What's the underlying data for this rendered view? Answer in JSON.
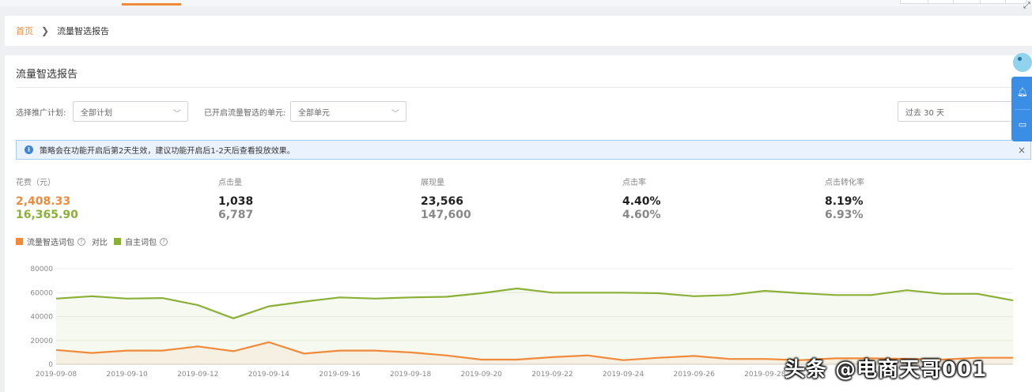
{
  "breadcrumb": {
    "home": "首页",
    "separator": "❯",
    "current": "流量智选报告"
  },
  "panel": {
    "title": "流量智选报告"
  },
  "filters": {
    "plan_label": "选择推广计划:",
    "plan_value": "全部计划",
    "unit_label": "已开启流量智选的单元:",
    "unit_value": "全部单元",
    "date_value": "过去 30 天"
  },
  "notice": {
    "text": "策略会在功能开启后第2天生效，建议功能开启后1-2天后查看投放效果。",
    "close": "×",
    "info": "i"
  },
  "metrics": [
    {
      "label": "花费（元）",
      "value1": "2,408.33",
      "value2": "16,365.90"
    },
    {
      "label": "点击量",
      "value1": "1,038",
      "value2": "6,787"
    },
    {
      "label": "展现量",
      "value1": "23,566",
      "value2": "147,600"
    },
    {
      "label": "点击率",
      "value1": "4.40%",
      "value2": "4.60%"
    },
    {
      "label": "点击转化率",
      "value1": "8.19%",
      "value2": "6.93%"
    }
  ],
  "legend": {
    "series1": "流量智选词包",
    "compare": "对比",
    "series2": "自主词包",
    "help": "?"
  },
  "colors": {
    "accent": "#f08a3a",
    "green": "#8ab037",
    "blue": "#3a8ee6"
  },
  "icons": {
    "bell": "bell-icon",
    "chat": "chat-icon",
    "info": "info-icon",
    "close": "close-icon"
  },
  "watermark": "头条 @电商天哥001",
  "chart_data": {
    "type": "area",
    "x": [
      "2019-09-08",
      "2019-09-09",
      "2019-09-10",
      "2019-09-11",
      "2019-09-12",
      "2019-09-13",
      "2019-09-14",
      "2019-09-15",
      "2019-09-16",
      "2019-09-17",
      "2019-09-18",
      "2019-09-19",
      "2019-09-20",
      "2019-09-21",
      "2019-09-22",
      "2019-09-23",
      "2019-09-24",
      "2019-09-25",
      "2019-09-26",
      "2019-09-27",
      "2019-09-28",
      "2019-09-29",
      "2019-09-30",
      "2019-10-01",
      "2019-10-02",
      "2019-10-03",
      "2019-10-04",
      "2019-10-05"
    ],
    "xticks": [
      "2019-09-08",
      "2019-09-10",
      "2019-09-12",
      "2019-09-14",
      "2019-09-16",
      "2019-09-18",
      "2019-09-20",
      "2019-09-22",
      "2019-09-24",
      "2019-09-26",
      "2019-09-28"
    ],
    "yticks": [
      "0",
      "20000",
      "40000",
      "60000",
      "80000"
    ],
    "ylim": [
      0,
      80000
    ],
    "series": [
      {
        "name": "自主词包",
        "color": "#8ab037",
        "values": [
          55000,
          57000,
          55000,
          55500,
          49500,
          38500,
          48500,
          52500,
          56000,
          55000,
          56000,
          56500,
          59500,
          63500,
          60000,
          60000,
          60000,
          59500,
          57000,
          58000,
          61500,
          59500,
          58000,
          58000,
          62000,
          59000,
          59000,
          53500
        ]
      },
      {
        "name": "流量智选词包",
        "color": "#f08a3a",
        "values": [
          12000,
          9500,
          11500,
          11500,
          15000,
          11000,
          18500,
          9000,
          11500,
          11500,
          10000,
          7500,
          4000,
          4000,
          6000,
          7500,
          3500,
          5500,
          7000,
          4500,
          4500,
          3500,
          5000,
          5000,
          4500,
          4000,
          5500,
          5500
        ]
      }
    ]
  }
}
